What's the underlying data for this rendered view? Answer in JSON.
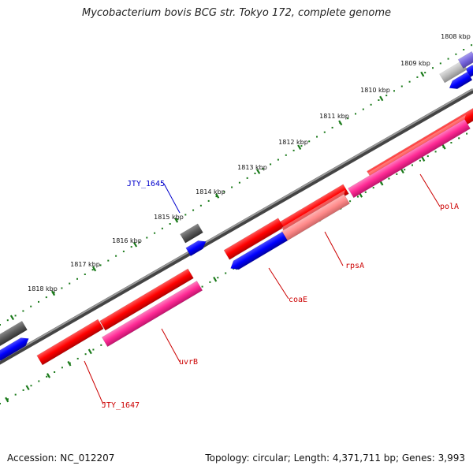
{
  "title": "Mycobacterium bovis BCG str. Tokyo 172, complete genome",
  "accession": "Accession: NC_012207",
  "topology": "Topology: circular; Length: 4,371,711 bp; Genes: 3,993",
  "colors": {
    "backbone": "#777777",
    "tick_marks": "#1a7a1a",
    "forward_gene": "#ff0000",
    "reverse_gene": "#0000ff",
    "rna_gene": "#ff3399",
    "pseudo_gene": "#666666",
    "label_red": "#cc0000",
    "label_blue": "#0000cc"
  },
  "ticks": [
    {
      "label": "1808 kbp"
    },
    {
      "label": "1809 kbp"
    },
    {
      "label": "1810 kbp"
    },
    {
      "label": "1811 kbp"
    },
    {
      "label": "1812 kbp"
    },
    {
      "label": "1813 kbp"
    },
    {
      "label": "1814 kbp"
    },
    {
      "label": "1815 kbp"
    },
    {
      "label": "1816 kbp"
    },
    {
      "label": "1817 kbp"
    },
    {
      "label": "1818 kbp"
    }
  ],
  "gene_labels": [
    {
      "name": "JTY_1645",
      "color": "blue"
    },
    {
      "name": "polA",
      "color": "red"
    },
    {
      "name": "rpsA",
      "color": "red"
    },
    {
      "name": "coaE",
      "color": "red"
    },
    {
      "name": "uvrB",
      "color": "red"
    },
    {
      "name": "JTY_1647",
      "color": "red"
    }
  ]
}
